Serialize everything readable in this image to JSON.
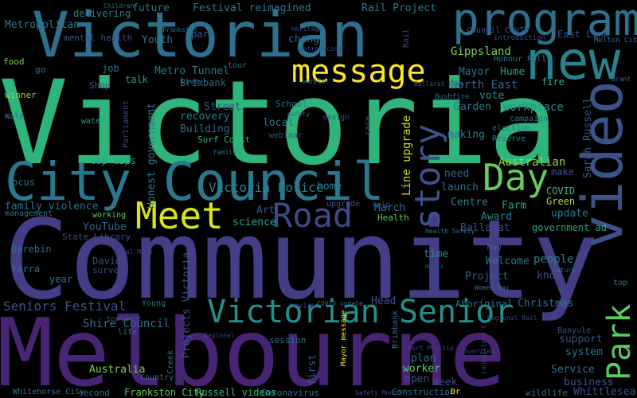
{
  "words": [
    {
      "text": "Community",
      "color": "#433e85"
    },
    {
      "text": "Victoria",
      "color": "#2fb47c"
    },
    {
      "text": "Melbourne",
      "color": "#482475"
    },
    {
      "text": "Victorian",
      "color": "#2d708e"
    },
    {
      "text": "City Council",
      "color": "#2a788e"
    },
    {
      "text": "new",
      "color": "#26828e"
    },
    {
      "text": "program",
      "color": "#2c728e"
    },
    {
      "text": "video",
      "color": "#3b528b"
    },
    {
      "text": "Road",
      "color": "#3e4989"
    },
    {
      "text": "Day",
      "color": "#65cb5e"
    },
    {
      "text": "Meet",
      "color": "#d8e219"
    },
    {
      "text": "message",
      "color": "#fde725"
    },
    {
      "text": "Victorian Senior",
      "color": "#21918c"
    },
    {
      "text": "story",
      "color": "#3b528b"
    },
    {
      "text": "Park",
      "color": "#5ec962"
    },
    {
      "text": "Victoria Police",
      "color": "#25858e"
    },
    {
      "text": "Seniors Festival",
      "color": "#3b528b"
    },
    {
      "text": "Shire Council",
      "color": "#2c728e"
    },
    {
      "text": "Festival reimagined",
      "color": "#2a788e"
    },
    {
      "text": "Rail Project",
      "color": "#2a788e"
    },
    {
      "text": "future",
      "color": "#2a788e"
    },
    {
      "text": "delivering",
      "color": "#27808e"
    },
    {
      "text": "Metro Tunnel",
      "color": "#2a768e"
    },
    {
      "text": "Brimbank",
      "color": "#31688e"
    },
    {
      "text": "recovery",
      "color": "#277f8e"
    },
    {
      "text": "Building",
      "color": "#31688e"
    },
    {
      "text": "Surf Coast",
      "color": "#35b779"
    },
    {
      "text": "Street",
      "color": "#3b528b"
    },
    {
      "text": "top tips",
      "color": "#22a884"
    },
    {
      "text": "Youth",
      "color": "#2a788e"
    },
    {
      "text": "part",
      "color": "#355f8d"
    },
    {
      "text": "change",
      "color": "#31688e"
    },
    {
      "text": "talk",
      "color": "#20a486"
    },
    {
      "text": "job",
      "color": "#2d708e"
    },
    {
      "text": "Gippsland",
      "color": "#7ad151"
    },
    {
      "text": "East Link",
      "color": "#3b528b"
    },
    {
      "text": "Mayor",
      "color": "#2c728e"
    },
    {
      "text": "Hume",
      "color": "#1f9e89"
    },
    {
      "text": "North East",
      "color": "#31688e"
    },
    {
      "text": "fire",
      "color": "#35b779"
    },
    {
      "text": "vote",
      "color": "#21918c"
    },
    {
      "text": "Garden",
      "color": "#2a788e"
    },
    {
      "text": "workplace",
      "color": "#21918c"
    },
    {
      "text": "making",
      "color": "#2a788e"
    },
    {
      "text": "Australian",
      "color": "#95d840"
    },
    {
      "text": "make",
      "color": "#3b528b"
    },
    {
      "text": "need",
      "color": "#31688e"
    },
    {
      "text": "launch",
      "color": "#2c728e"
    },
    {
      "text": "COVID",
      "color": "#35b779"
    },
    {
      "text": "home",
      "color": "#2a788e"
    },
    {
      "text": "Green",
      "color": "#b5de2b"
    },
    {
      "text": "update",
      "color": "#2a788e"
    },
    {
      "text": "Farm",
      "color": "#20a486"
    },
    {
      "text": "Centre",
      "color": "#26828e"
    },
    {
      "text": "Award",
      "color": "#26828e"
    },
    {
      "text": "Ballarat",
      "color": "#3b528b"
    },
    {
      "text": "government ad",
      "color": "#22a884"
    },
    {
      "text": "March",
      "color": "#2d708e"
    },
    {
      "text": "Health",
      "color": "#5ec962"
    },
    {
      "text": "Welcome",
      "color": "#2a788e"
    },
    {
      "text": "people",
      "color": "#27808e"
    },
    {
      "text": "know",
      "color": "#3b528b"
    },
    {
      "text": "Project",
      "color": "#355f8d"
    },
    {
      "text": "time",
      "color": "#23898e"
    },
    {
      "text": "focus",
      "color": "#2d708e"
    },
    {
      "text": "family violence",
      "color": "#2d708e"
    },
    {
      "text": "YouTube",
      "color": "#31688e"
    },
    {
      "text": "Art",
      "color": "#3b528b"
    },
    {
      "text": "science",
      "color": "#22a884"
    },
    {
      "text": "Darebin",
      "color": "#2c728e"
    },
    {
      "text": "Yarra",
      "color": "#2c728e"
    },
    {
      "text": "year",
      "color": "#2d708e"
    },
    {
      "text": "David",
      "color": "#3e4989"
    },
    {
      "text": "survey",
      "color": "#3e4989"
    },
    {
      "text": "Honest government",
      "color": "#2a788e"
    },
    {
      "text": "Projects Victoria",
      "color": "#3b528b"
    },
    {
      "text": "Line upgrade",
      "color": "#c8e020"
    },
    {
      "text": "Sarah Russell",
      "color": "#3b528b"
    },
    {
      "text": "Head",
      "color": "#3b528b"
    },
    {
      "text": "Christmas",
      "color": "#2c728e"
    },
    {
      "text": "Aboriginal",
      "color": "#2a788e"
    },
    {
      "text": "support",
      "color": "#3b528b"
    },
    {
      "text": "system",
      "color": "#2d708e"
    },
    {
      "text": "Service",
      "color": "#2d708e"
    },
    {
      "text": "business",
      "color": "#3b528b"
    },
    {
      "text": "Whittlesea",
      "color": "#3b528b"
    },
    {
      "text": "plan",
      "color": "#2d708e"
    },
    {
      "text": "worker",
      "color": "#5ec962"
    },
    {
      "text": "open",
      "color": "#3b528b"
    },
    {
      "text": "first",
      "color": "#3b528b"
    },
    {
      "text": "Australia",
      "color": "#7ad151"
    },
    {
      "text": "Frankston City",
      "color": "#5ec962"
    },
    {
      "text": "Russell videos",
      "color": "#35b779"
    },
    {
      "text": "Coronavirus",
      "color": "#2a788e"
    },
    {
      "text": "Construction",
      "color": "#2d708e"
    },
    {
      "text": "wildlife",
      "color": "#2c728e"
    },
    {
      "text": "second",
      "color": "#2c728e"
    },
    {
      "text": "School",
      "color": "#2c728e"
    },
    {
      "text": "local",
      "color": "#2c728e"
    },
    {
      "text": "Metropolitan",
      "color": "#2a788e"
    },
    {
      "text": "mental health",
      "color": "#3b528b"
    },
    {
      "text": "food",
      "color": "#7ad151"
    },
    {
      "text": "go",
      "color": "#2c728e"
    },
    {
      "text": "winner",
      "color": "#95d840"
    },
    {
      "text": "Walk",
      "color": "#2a788e"
    },
    {
      "text": "water",
      "color": "#22a884"
    },
    {
      "text": "Shop",
      "color": "#3b528b"
    },
    {
      "text": "Parliament",
      "color": "#3e4989"
    },
    {
      "text": "tour",
      "color": "#2c728e"
    },
    {
      "text": "introduction",
      "color": "#3e4989"
    },
    {
      "text": "Melton City",
      "color": "#2d708e"
    },
    {
      "text": "Council COVID",
      "color": "#3b528b"
    },
    {
      "text": "Honour Roll",
      "color": "#2c728e"
    },
    {
      "text": "election",
      "color": "#2c728e"
    },
    {
      "text": "campaign",
      "color": "#2a788e"
    },
    {
      "text": "Reserve",
      "color": "#26828e"
    },
    {
      "text": "live",
      "color": "#2c728e"
    },
    {
      "text": "webinar",
      "color": "#3b528b"
    },
    {
      "text": "Brimbank",
      "color": "#31688e"
    },
    {
      "text": "working",
      "color": "#5ec962"
    },
    {
      "text": "State Library",
      "color": "#3e4989"
    },
    {
      "text": "management",
      "color": "#2a788e"
    },
    {
      "text": "May",
      "color": "#2c728e"
    },
    {
      "text": "life",
      "color": "#2c728e"
    },
    {
      "text": "Young",
      "color": "#26828e"
    },
    {
      "text": "Creek",
      "color": "#2c728e"
    },
    {
      "text": "Country",
      "color": "#2c728e"
    },
    {
      "text": "Whitehorse City",
      "color": "#2c728e"
    },
    {
      "text": "session",
      "color": "#2c728e"
    },
    {
      "text": "review",
      "color": "#3e4989"
    },
    {
      "text": "Week",
      "color": "#3e4989"
    },
    {
      "text": "back",
      "color": "#3e4989"
    },
    {
      "text": "Dr",
      "color": "#fde725"
    },
    {
      "text": "Banyule",
      "color": "#3b528b"
    },
    {
      "text": "top",
      "color": "#2c728e"
    },
    {
      "text": "upgrade",
      "color": "#3b528b"
    },
    {
      "text": "help",
      "color": "#3e4989"
    },
    {
      "text": "care",
      "color": "#3b528b"
    },
    {
      "text": "Rail",
      "color": "#3e4989"
    },
    {
      "text": "Ballarat Line",
      "color": "#3b528b"
    },
    {
      "text": "waste",
      "color": "#2c728e"
    },
    {
      "text": "Children",
      "color": "#2c728e"
    },
    {
      "text": "introducing",
      "color": "#3e4989"
    },
    {
      "text": "Frankston",
      "color": "#2c728e"
    },
    {
      "text": "Mayor message",
      "color": "#fde725"
    },
    {
      "text": "safety",
      "color": "#2c728e"
    },
    {
      "text": "design",
      "color": "#3b528b"
    },
    {
      "text": "Family",
      "color": "#2c728e"
    },
    {
      "text": "Brant",
      "color": "#2c728e"
    },
    {
      "text": "Health Safety",
      "color": "#2c728e"
    },
    {
      "text": "nature",
      "color": "#2c728e"
    },
    {
      "text": "COVID update",
      "color": "#2c728e"
    },
    {
      "text": "Women Day",
      "color": "#2c728e"
    },
    {
      "text": "Safety Month",
      "color": "#3e4989"
    },
    {
      "text": "Port Phillip",
      "color": "#3e4989"
    },
    {
      "text": "Regional Rail",
      "color": "#3e4989"
    },
    {
      "text": "councillors Cr",
      "color": "#3e4989"
    },
    {
      "text": "music",
      "color": "#3e4989"
    },
    {
      "text": "Goal Mile",
      "color": "#3e4989"
    },
    {
      "text": "transport",
      "color": "#2c728e"
    },
    {
      "text": "Regional",
      "color": "#3e4989"
    },
    {
      "text": "overview",
      "color": "#3e4989"
    },
    {
      "text": "Heritage",
      "color": "#3e4989"
    },
    {
      "text": "Bushfire",
      "color": "#2c728e"
    },
    {
      "text": "worth highlights",
      "color": "#2c728e"
    },
    {
      "text": "Final",
      "color": "#3e4989"
    }
  ]
}
